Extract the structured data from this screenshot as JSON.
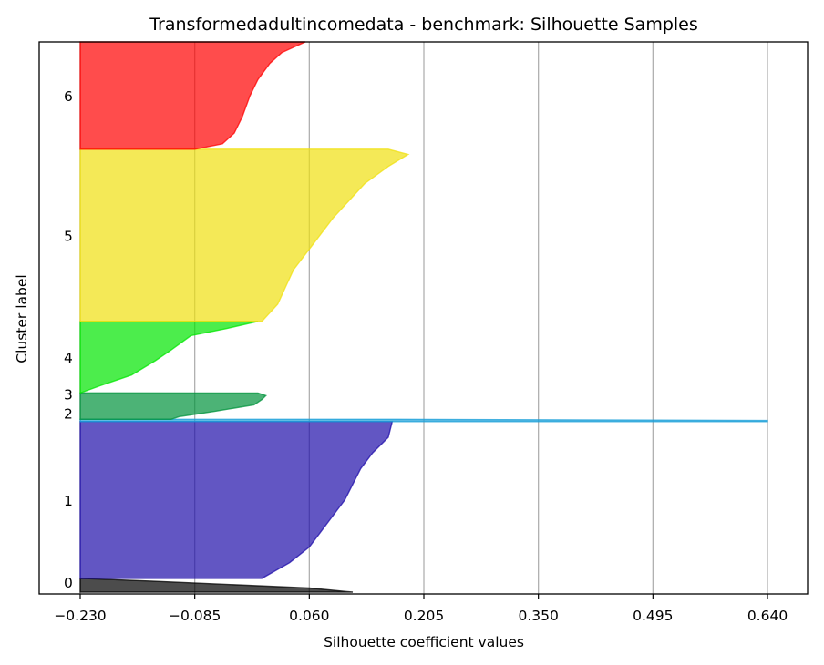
{
  "chart_data": {
    "type": "area",
    "title": "Transformedadultincomedata - benchmark: Silhouette Samples",
    "xlabel": "Silhouette coefficient values",
    "ylabel": "Cluster label",
    "xlim": [
      -0.23,
      0.69
    ],
    "xticks": [
      -0.23,
      -0.085,
      0.06,
      0.205,
      0.35,
      0.495,
      0.64
    ],
    "xtick_labels": [
      "−0.230",
      "−0.085",
      "0.060",
      "0.205",
      "0.350",
      "0.495",
      "0.640"
    ],
    "grid": "vertical",
    "clusters": [
      {
        "label": "0",
        "color": "#000000",
        "band": [
          0.0,
          0.025
        ],
        "profile": [
          [
            0.0,
            0.115
          ],
          [
            0.3,
            0.06
          ],
          [
            0.55,
            -0.04
          ],
          [
            0.8,
            -0.14
          ],
          [
            1.0,
            -0.23
          ]
        ]
      },
      {
        "label": "1",
        "color": "#1f0eaa",
        "band": [
          0.025,
          0.31
        ],
        "profile": [
          [
            0.0,
            -0.0
          ],
          [
            0.1,
            0.035
          ],
          [
            0.2,
            0.06
          ],
          [
            0.3,
            0.075
          ],
          [
            0.4,
            0.09
          ],
          [
            0.5,
            0.105
          ],
          [
            0.6,
            0.115
          ],
          [
            0.7,
            0.125
          ],
          [
            0.8,
            0.14
          ],
          [
            0.9,
            0.16
          ],
          [
            1.0,
            0.165
          ]
        ]
      },
      {
        "label": "2",
        "color": "#1a9fd8",
        "band": [
          0.31,
          0.314
        ],
        "profile": [
          [
            0.0,
            0.64
          ],
          [
            0.5,
            0.64
          ],
          [
            1.0,
            0.17
          ]
        ]
      },
      {
        "label": "3",
        "color": "#00933c",
        "band": [
          0.314,
          0.362
        ],
        "profile": [
          [
            0.0,
            -0.115
          ],
          [
            0.1,
            -0.105
          ],
          [
            0.3,
            -0.06
          ],
          [
            0.55,
            -0.01
          ],
          [
            0.75,
            0.0
          ],
          [
            0.9,
            0.005
          ],
          [
            1.0,
            -0.005
          ]
        ]
      },
      {
        "label": "4",
        "color": "#00e600",
        "band": [
          0.362,
          0.492
        ],
        "profile": [
          [
            0.0,
            -0.23
          ],
          [
            0.1,
            -0.205
          ],
          [
            0.25,
            -0.165
          ],
          [
            0.45,
            -0.135
          ],
          [
            0.6,
            -0.115
          ],
          [
            0.8,
            -0.09
          ],
          [
            0.9,
            -0.045
          ],
          [
            1.0,
            -0.005
          ]
        ]
      },
      {
        "label": "5",
        "color": "#f0e010",
        "band": [
          0.492,
          0.805
        ],
        "profile": [
          [
            0.0,
            -0.0
          ],
          [
            0.1,
            0.02
          ],
          [
            0.2,
            0.03
          ],
          [
            0.3,
            0.04
          ],
          [
            0.45,
            0.065
          ],
          [
            0.6,
            0.09
          ],
          [
            0.7,
            0.11
          ],
          [
            0.8,
            0.13
          ],
          [
            0.9,
            0.16
          ],
          [
            0.97,
            0.185
          ],
          [
            1.0,
            0.16
          ]
        ]
      },
      {
        "label": "6",
        "color": "#ff0000",
        "band": [
          0.805,
          1.0
        ],
        "profile": [
          [
            0.0,
            -0.085
          ],
          [
            0.05,
            -0.05
          ],
          [
            0.15,
            -0.035
          ],
          [
            0.3,
            -0.025
          ],
          [
            0.5,
            -0.015
          ],
          [
            0.65,
            -0.005
          ],
          [
            0.8,
            0.01
          ],
          [
            0.9,
            0.025
          ],
          [
            1.0,
            0.055
          ]
        ]
      }
    ]
  }
}
